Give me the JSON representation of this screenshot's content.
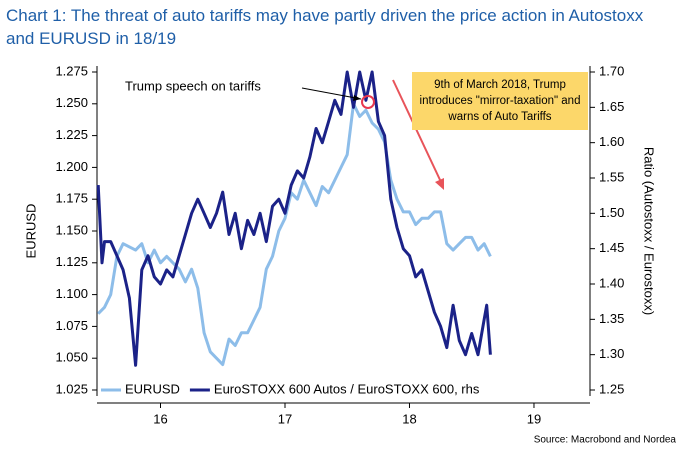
{
  "chart_data": {
    "type": "line",
    "title": "Chart 1: The threat of auto tariffs may have partly driven the price action in Autostoxx and EURUSD in 18/19",
    "ylabel": "EURUSD",
    "y2label": "Ratio (Autostoxx / Eurostoxx)",
    "source": "Source: Macrobond and Nordea",
    "annotations": [
      "Trump speech on tariffs",
      "9th of March 2018, Trump introduces \"mirror-taxation\" and warns of Auto Tariffs"
    ],
    "xlim": [
      15.99,
      19.95
    ],
    "xticks": [
      {
        "value": 16.5,
        "label": "16"
      },
      {
        "value": 17.5,
        "label": "17"
      },
      {
        "value": 18.5,
        "label": "18"
      },
      {
        "value": 19.5,
        "label": "19"
      }
    ],
    "ylim": [
      1.025,
      1.275
    ],
    "yticks": [
      1.025,
      {
        "value": 1.05,
        "label": "1.050"
      },
      1.075,
      {
        "value": 1.1,
        "label": "1.100"
      },
      1.125,
      {
        "value": 1.15,
        "label": "1.150"
      },
      1.175,
      {
        "value": 1.2,
        "label": "1.200"
      },
      1.225,
      {
        "value": 1.25,
        "label": "1.250"
      },
      1.275
    ],
    "y2lim": [
      1.25,
      1.7
    ],
    "y2ticks": [
      1.25,
      {
        "value": 1.3,
        "label": "1.30"
      },
      1.35,
      {
        "value": 1.4,
        "label": "1.40"
      },
      1.45,
      {
        "value": 1.5,
        "label": "1.50"
      },
      1.55,
      {
        "value": 1.6,
        "label": "1.60"
      },
      1.65,
      {
        "value": 1.7,
        "label": "1.70"
      }
    ],
    "grid": false,
    "legend": "lower left",
    "series": [
      {
        "name": "EURUSD",
        "color": "#8dbde9",
        "x": [
          16.0,
          16.05,
          16.1,
          16.15,
          16.2,
          16.3,
          16.35,
          16.4,
          16.45,
          16.5,
          16.55,
          16.6,
          16.65,
          16.7,
          16.75,
          16.8,
          16.85,
          16.9,
          16.95,
          17.0,
          17.05,
          17.1,
          17.15,
          17.2,
          17.25,
          17.3,
          17.35,
          17.4,
          17.45,
          17.5,
          17.55,
          17.6,
          17.65,
          17.7,
          17.75,
          17.8,
          17.85,
          17.9,
          17.95,
          18.0,
          18.05,
          18.1,
          18.15,
          18.2,
          18.25,
          18.3,
          18.35,
          18.4,
          18.45,
          18.5,
          18.55,
          18.6,
          18.65,
          18.7,
          18.75,
          18.8,
          18.85,
          18.9,
          18.95,
          19.0,
          19.05,
          19.1,
          19.15
        ],
        "values": [
          1.085,
          1.09,
          1.1,
          1.13,
          1.14,
          1.135,
          1.14,
          1.125,
          1.135,
          1.125,
          1.13,
          1.125,
          1.12,
          1.11,
          1.12,
          1.105,
          1.07,
          1.055,
          1.05,
          1.045,
          1.065,
          1.06,
          1.07,
          1.07,
          1.08,
          1.09,
          1.12,
          1.13,
          1.15,
          1.16,
          1.18,
          1.175,
          1.19,
          1.18,
          1.17,
          1.185,
          1.18,
          1.19,
          1.2,
          1.21,
          1.25,
          1.24,
          1.245,
          1.235,
          1.23,
          1.22,
          1.19,
          1.175,
          1.165,
          1.165,
          1.155,
          1.16,
          1.16,
          1.165,
          1.165,
          1.14,
          1.135,
          1.14,
          1.145,
          1.145,
          1.135,
          1.14,
          1.13
        ]
      },
      {
        "name": "EuroSTOXX 600 Autos / EuroSTOXX 600, rhs",
        "color": "#1b2288",
        "axis": "y2",
        "x": [
          16.0,
          16.03,
          16.05,
          16.1,
          16.15,
          16.2,
          16.25,
          16.3,
          16.35,
          16.4,
          16.45,
          16.5,
          16.55,
          16.6,
          16.7,
          16.75,
          16.8,
          16.85,
          16.9,
          16.95,
          17.0,
          17.05,
          17.1,
          17.15,
          17.2,
          17.25,
          17.3,
          17.35,
          17.4,
          17.45,
          17.5,
          17.55,
          17.6,
          17.65,
          17.7,
          17.75,
          17.8,
          17.85,
          17.9,
          17.95,
          18.0,
          18.05,
          18.1,
          18.15,
          18.2,
          18.25,
          18.3,
          18.35,
          18.4,
          18.45,
          18.5,
          18.55,
          18.6,
          18.7,
          18.75,
          18.8,
          18.85,
          18.9,
          18.95,
          19.0,
          19.05,
          19.1,
          19.12,
          19.15
        ],
        "values": [
          1.54,
          1.43,
          1.46,
          1.46,
          1.44,
          1.42,
          1.38,
          1.285,
          1.42,
          1.44,
          1.41,
          1.4,
          1.42,
          1.41,
          1.47,
          1.5,
          1.52,
          1.5,
          1.48,
          1.5,
          1.53,
          1.47,
          1.5,
          1.45,
          1.49,
          1.47,
          1.5,
          1.46,
          1.51,
          1.52,
          1.5,
          1.54,
          1.56,
          1.55,
          1.58,
          1.62,
          1.6,
          1.63,
          1.66,
          1.64,
          1.7,
          1.65,
          1.7,
          1.66,
          1.7,
          1.63,
          1.61,
          1.52,
          1.48,
          1.45,
          1.44,
          1.41,
          1.42,
          1.36,
          1.34,
          1.31,
          1.37,
          1.32,
          1.3,
          1.33,
          1.3,
          1.35,
          1.37,
          1.3
        ]
      }
    ]
  }
}
